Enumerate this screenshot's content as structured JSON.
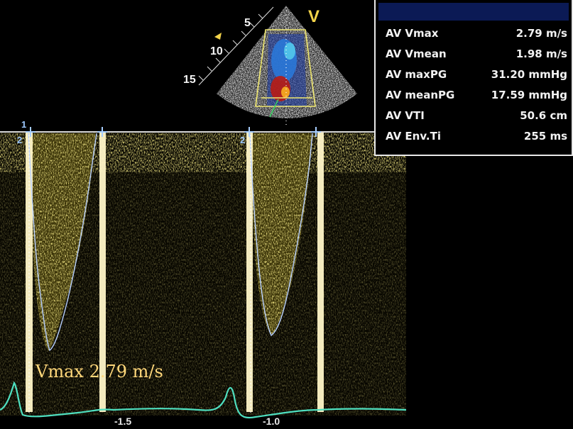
{
  "measurements": [
    {
      "label": "AV Vmax",
      "value": "2.79 m/s"
    },
    {
      "label": "AV Vmean",
      "value": "1.98 m/s"
    },
    {
      "label": "AV maxPG",
      "value": "31.20 mmHg"
    },
    {
      "label": "AV meanPG",
      "value": "17.59 mmHg"
    },
    {
      "label": "AV VTI",
      "value": "50.6 cm"
    },
    {
      "label": "AV Env.Ti",
      "value": "255 ms"
    }
  ],
  "overlay": {
    "vmax_annotation": "Vmax 2.79 m/s",
    "probe_marker": "V",
    "depth_labels": [
      "5",
      "10",
      "15"
    ],
    "time_ticks": [
      "-1.5",
      "-1.0"
    ],
    "cursor_markers": [
      "1",
      "2",
      "2"
    ]
  },
  "colors": {
    "doppler": "#d6c442",
    "envelope": "#b8d0ff",
    "ecg": "#4fe0c0",
    "panel_header": "#0b1a55",
    "annotation": "#ffd77a"
  }
}
